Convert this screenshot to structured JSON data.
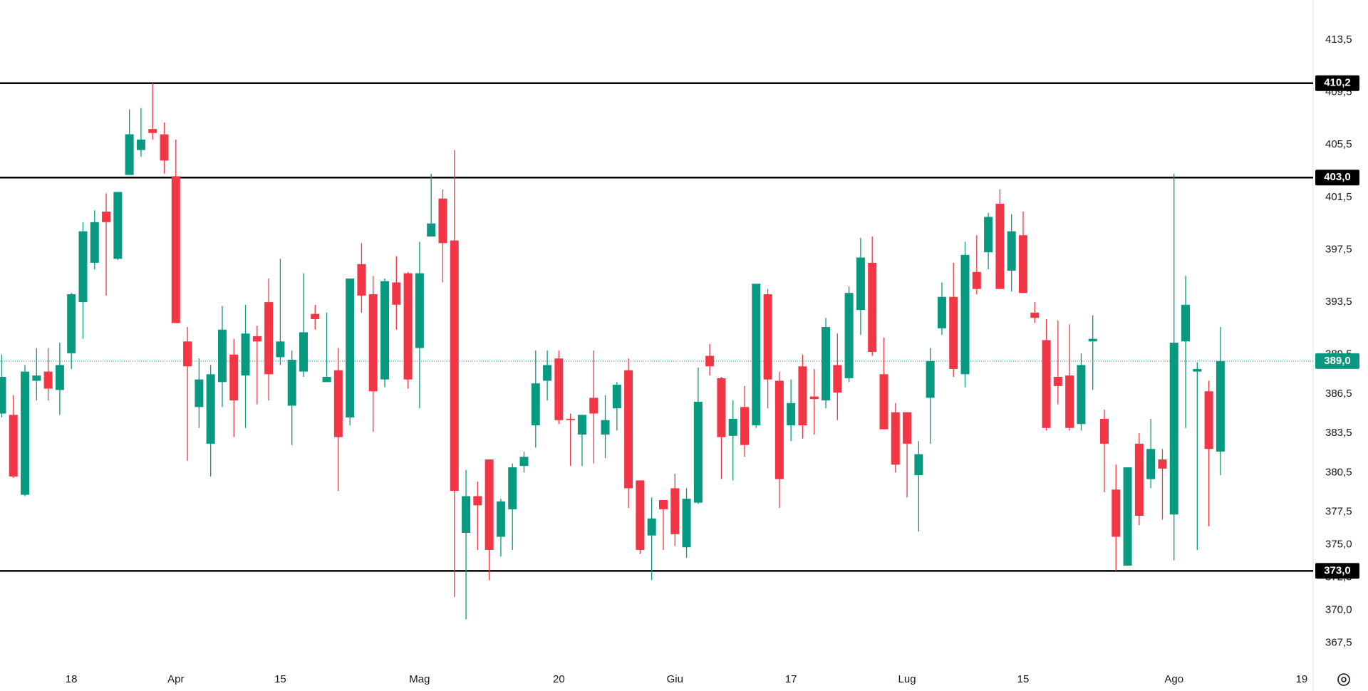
{
  "chart_data": {
    "type": "candlestick",
    "categories": [
      null,
      null,
      null,
      null,
      null,
      null,
      "18",
      null,
      null,
      null,
      null,
      null,
      null,
      null,
      null,
      "Apr",
      null,
      null,
      null,
      null,
      null,
      null,
      null,
      null,
      "15",
      null,
      null,
      null,
      null,
      null,
      null,
      null,
      null,
      null,
      null,
      null,
      "Mag",
      null,
      null,
      null,
      null,
      null,
      null,
      null,
      null,
      null,
      null,
      null,
      "20",
      null,
      null,
      null,
      null,
      null,
      null,
      null,
      null,
      null,
      "Giu",
      null,
      null,
      null,
      null,
      null,
      null,
      null,
      null,
      null,
      "17",
      null,
      null,
      null,
      null,
      null,
      null,
      null,
      null,
      null,
      "Lug",
      null,
      null,
      null,
      null,
      null,
      null,
      null,
      null,
      null,
      "15",
      null,
      null,
      null,
      null,
      null,
      null,
      null,
      null,
      null,
      null,
      null,
      null,
      "Ago",
      null,
      null,
      null,
      null,
      null,
      null,
      null,
      null,
      null,
      null,
      "19"
    ],
    "open": [
      385.0,
      384.9,
      378.8,
      387.5,
      388.2,
      386.8,
      389.6,
      393.5,
      396.5,
      400.4,
      396.8,
      403.2,
      405.1,
      406.7,
      406.3,
      403.1,
      390.5,
      385.5,
      382.7,
      387.4,
      389.5,
      387.9,
      390.9,
      393.5,
      389.3,
      385.6,
      388.2,
      392.6,
      387.4,
      388.3,
      384.7,
      396.4,
      394.1,
      387.6,
      395.0,
      395.7,
      390.0,
      398.5,
      401.4,
      398.2,
      375.9,
      378.7,
      381.5,
      375.6,
      377.7,
      381.0,
      384.1,
      387.5,
      389.2,
      384.6,
      383.4,
      386.2,
      383.4,
      385.4,
      388.3,
      379.9,
      375.7,
      378.4,
      379.3,
      374.8,
      378.2,
      389.4,
      387.7,
      383.3,
      385.5,
      384.1,
      394.1,
      387.5,
      384.1,
      388.6,
      386.3,
      386.0,
      388.7,
      387.7,
      392.9,
      396.5,
      388.0,
      385.1,
      385.1,
      380.3,
      386.2,
      391.5,
      393.9,
      388.0,
      395.8,
      397.3,
      401.0,
      395.9,
      398.6,
      392.7,
      390.6,
      387.8,
      387.9,
      384.2,
      390.5,
      384.6,
      379.2,
      373.4,
      382.7,
      380.0,
      381.5,
      377.3,
      390.5,
      388.2,
      386.7,
      382.1,
      null,
      null,
      null,
      null,
      null,
      null,
      null
    ],
    "high": [
      389.5,
      386.4,
      388.7,
      390,
      390,
      390.4,
      394.2,
      399.6,
      400.5,
      401.8,
      401.9,
      408.2,
      408.3,
      410.2,
      407.2,
      405.9,
      391.6,
      389.2,
      388.7,
      393.2,
      390.7,
      393.3,
      391.7,
      395.3,
      396.8,
      389.8,
      395.7,
      393.3,
      392.7,
      390.0,
      395.3,
      398.0,
      395.5,
      395.3,
      397.0,
      395.8,
      398.1,
      403.3,
      402.1,
      405.1,
      380.7,
      379.8,
      381.5,
      378.5,
      381.2,
      382.1,
      389.8,
      389.8,
      389.8,
      385.0,
      384.9,
      389.8,
      386.4,
      387.4,
      389.2,
      379.9,
      378.6,
      378.4,
      380.4,
      379.3,
      388.5,
      390.3,
      387.8,
      386.0,
      387.1,
      394.9,
      394.5,
      388.2,
      387.6,
      389.5,
      388.4,
      392.3,
      391.1,
      394.7,
      398.4,
      398.5,
      390.8,
      385.8,
      385.1,
      382.9,
      390.0,
      395.0,
      396.5,
      398.1,
      398.6,
      400.3,
      402.1,
      400.2,
      400.4,
      393.5,
      392.2,
      392.1,
      391.8,
      389.6,
      392.5,
      385.3,
      381.1,
      380.9,
      383.5,
      384.6,
      382.3,
      403.3,
      395.5,
      388.9,
      387.5,
      391.6,
      null,
      null,
      null,
      null,
      null,
      null,
      null
    ],
    "low": [
      384.7,
      380.1,
      378.7,
      386,
      386,
      384.9,
      388.4,
      390.7,
      396,
      394.0,
      396.7,
      403.2,
      404.6,
      405.9,
      403.3,
      391.9,
      381.4,
      383.9,
      380.2,
      385.5,
      383.2,
      383.9,
      385.7,
      386.0,
      388.7,
      382.6,
      387.8,
      391.4,
      387.4,
      379.1,
      384.1,
      392.7,
      383.6,
      387.0,
      391.4,
      386.9,
      385.4,
      398.5,
      395.0,
      371.0,
      369.3,
      374.6,
      372.3,
      374.1,
      374.6,
      380.5,
      382.4,
      386.0,
      384.2,
      381.0,
      381.0,
      381.2,
      381.6,
      383.7,
      377.8,
      374.3,
      372.3,
      374.6,
      374.9,
      374.0,
      378.1,
      387.9,
      380.0,
      379.9,
      381.7,
      383.9,
      385.4,
      377.8,
      382.9,
      383.1,
      383.4,
      385.4,
      384.5,
      387.4,
      391.0,
      389.4,
      383.8,
      380.5,
      378.6,
      376.0,
      382.7,
      391.0,
      387.8,
      387.0,
      394.1,
      396.0,
      394.5,
      394.3,
      394.2,
      391.9,
      383.7,
      385.7,
      383.7,
      383.7,
      386.8,
      379.0,
      373.0,
      373.4,
      376.5,
      379.3,
      376.9,
      373.8,
      383.9,
      374.6,
      376.4,
      380.3,
      null,
      null,
      null,
      null,
      null,
      null,
      null
    ],
    "close": [
      387.8,
      380.2,
      388.2,
      387.9,
      386.9,
      388.7,
      394.1,
      398.9,
      399.6,
      399.6,
      401.9,
      406.3,
      405.9,
      406.4,
      404.3,
      391.9,
      388.6,
      387.6,
      388.0,
      391.4,
      386.0,
      391.1,
      390.5,
      388.0,
      390.5,
      389.1,
      391.2,
      392.2,
      387.8,
      383.2,
      395.3,
      394.0,
      386.7,
      395.1,
      393.3,
      387.6,
      395.7,
      399.5,
      398.0,
      379.1,
      378.7,
      378.0,
      374.6,
      378.3,
      380.9,
      381.7,
      387.3,
      388.7,
      384.5,
      384.5,
      384.9,
      385.0,
      384.5,
      387.2,
      379.3,
      374.6,
      377.0,
      377.7,
      375.8,
      378.5,
      385.9,
      388.6,
      383.2,
      384.6,
      382.6,
      394.9,
      387.6,
      380.0,
      385.8,
      384.1,
      386.1,
      391.6,
      386.6,
      394.2,
      396.9,
      389.7,
      383.8,
      381.1,
      382.7,
      381.9,
      389.0,
      393.9,
      388.4,
      397.1,
      394.5,
      400.0,
      394.5,
      398.9,
      394.2,
      392.3,
      383.9,
      387.1,
      383.9,
      388.7,
      390.7,
      382.7,
      375.6,
      380.9,
      377.2,
      382.3,
      380.8,
      390.4,
      393.3,
      388.4,
      382.3,
      389.0,
      null,
      null,
      null,
      null,
      null,
      null,
      null
    ],
    "up_color": "#089981",
    "down_color": "#f23645",
    "ylim": [
      366.5,
      416.0
    ],
    "yticks": [
      {
        "value": 413.5,
        "label": "413,5"
      },
      {
        "value": 409.5,
        "label": "409,5"
      },
      {
        "value": 405.5,
        "label": "405,5"
      },
      {
        "value": 401.5,
        "label": "401,5"
      },
      {
        "value": 397.5,
        "label": "397,5"
      },
      {
        "value": 393.5,
        "label": "393,5"
      },
      {
        "value": 389.5,
        "label": "389,5"
      },
      {
        "value": 386.5,
        "label": "386,5"
      },
      {
        "value": 383.5,
        "label": "383,5"
      },
      {
        "value": 380.5,
        "label": "380,5"
      },
      {
        "value": 377.5,
        "label": "377,5"
      },
      {
        "value": 375.0,
        "label": "375,0"
      },
      {
        "value": 372.5,
        "label": "372,5"
      },
      {
        "value": 370.0,
        "label": "370,0"
      },
      {
        "value": 367.5,
        "label": "367,5"
      }
    ],
    "grid": true,
    "levels": [
      {
        "value": 410.2,
        "label": "410,2"
      },
      {
        "value": 403.0,
        "label": "403,0"
      },
      {
        "value": 373.0,
        "label": "373,0"
      }
    ],
    "last_price": {
      "value": 389.0,
      "label": "389,0"
    }
  }
}
